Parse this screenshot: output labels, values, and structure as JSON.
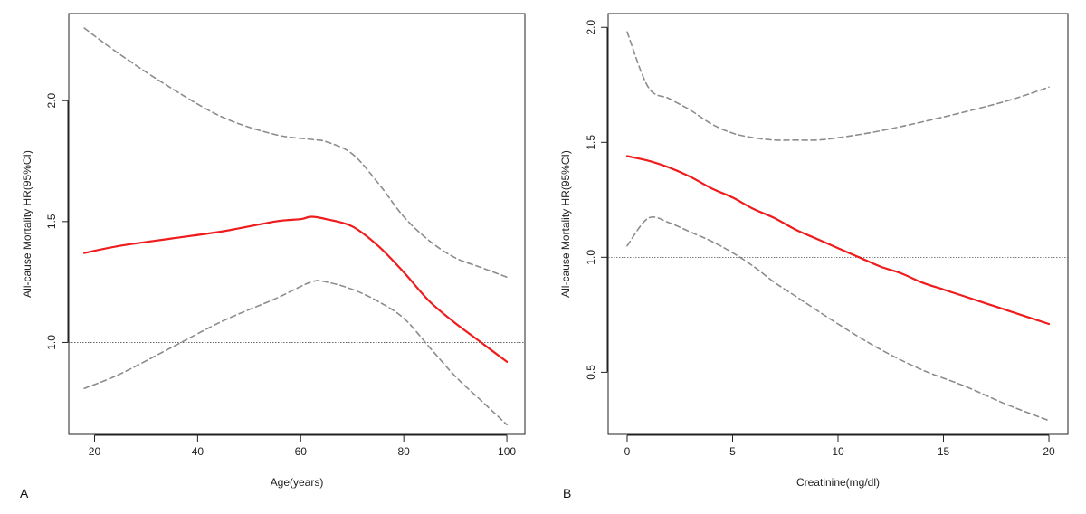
{
  "chart_data": [
    {
      "type": "line",
      "panel_label": "A",
      "xlabel": "Age(years)",
      "ylabel": "All-cause Mortality HR(95%CI)",
      "xlim": [
        15,
        103.5
      ],
      "ylim": [
        0.62,
        2.36
      ],
      "xticks": [
        20,
        40,
        60,
        80,
        100
      ],
      "xtick_labels": [
        "20",
        "40",
        "60",
        "80",
        "100"
      ],
      "yticks": [
        1.0,
        1.5,
        2.0
      ],
      "ytick_labels": [
        "1.0",
        "1.5",
        "2.0"
      ],
      "reference_line": 1.0,
      "colors": {
        "estimate": "#ee1c1c",
        "ci": "#8c8c8c",
        "reference": "#555555"
      },
      "series": [
        {
          "name": "HR",
          "style": "solid",
          "x": [
            18,
            25,
            35,
            45,
            55,
            60,
            62,
            65,
            70,
            75,
            80,
            85,
            90,
            95,
            100
          ],
          "y": [
            1.37,
            1.4,
            1.43,
            1.46,
            1.5,
            1.51,
            1.52,
            1.51,
            1.48,
            1.4,
            1.29,
            1.17,
            1.08,
            1.0,
            0.92
          ]
        },
        {
          "name": "Upper 95% CI",
          "style": "dashed",
          "x": [
            18,
            25,
            35,
            45,
            55,
            62,
            65,
            70,
            75,
            80,
            85,
            90,
            95,
            100
          ],
          "y": [
            2.3,
            2.19,
            2.05,
            1.93,
            1.86,
            1.84,
            1.83,
            1.78,
            1.66,
            1.52,
            1.42,
            1.35,
            1.31,
            1.27
          ]
        },
        {
          "name": "Lower 95% CI",
          "style": "dashed",
          "x": [
            18,
            25,
            35,
            45,
            55,
            62,
            65,
            70,
            75,
            80,
            85,
            90,
            95,
            100
          ],
          "y": [
            0.81,
            0.87,
            0.98,
            1.09,
            1.18,
            1.25,
            1.25,
            1.22,
            1.17,
            1.1,
            0.98,
            0.86,
            0.76,
            0.66
          ]
        }
      ]
    },
    {
      "type": "line",
      "panel_label": "B",
      "xlabel": "Creatinine(mg/dl)",
      "ylabel": "All-cause Mortality HR(95%CI)",
      "xlim": [
        -0.9,
        20.9
      ],
      "ylim": [
        0.23,
        2.06
      ],
      "xticks": [
        0,
        5,
        10,
        15,
        20
      ],
      "xtick_labels": [
        "0",
        "5",
        "10",
        "15",
        "20"
      ],
      "yticks": [
        0.5,
        1.0,
        1.5,
        2.0
      ],
      "ytick_labels": [
        "0.5",
        "1.0",
        "1.5",
        "2.0"
      ],
      "reference_line": 1.0,
      "colors": {
        "estimate": "#ee1c1c",
        "ci": "#8c8c8c",
        "reference": "#555555"
      },
      "series": [
        {
          "name": "HR",
          "style": "solid",
          "x": [
            0,
            1,
            2,
            3,
            4,
            5,
            6,
            7,
            8,
            9,
            10,
            11,
            12,
            13,
            14,
            15,
            16,
            17,
            18,
            19,
            20
          ],
          "y": [
            1.44,
            1.42,
            1.39,
            1.35,
            1.3,
            1.26,
            1.21,
            1.17,
            1.12,
            1.08,
            1.04,
            1.0,
            0.96,
            0.93,
            0.89,
            0.86,
            0.83,
            0.8,
            0.77,
            0.74,
            0.71
          ]
        },
        {
          "name": "Upper 95% CI",
          "style": "dashed",
          "x": [
            0,
            1,
            2,
            3,
            4,
            5,
            6,
            7,
            8,
            9,
            10,
            12,
            15,
            18,
            20
          ],
          "y": [
            1.98,
            1.74,
            1.69,
            1.64,
            1.58,
            1.54,
            1.52,
            1.51,
            1.51,
            1.51,
            1.52,
            1.55,
            1.61,
            1.68,
            1.74
          ]
        },
        {
          "name": "Lower 95% CI",
          "style": "dashed",
          "x": [
            0,
            1,
            2,
            3,
            4,
            5,
            6,
            7,
            8,
            10,
            12,
            14,
            16,
            18,
            20
          ],
          "y": [
            1.05,
            1.17,
            1.15,
            1.11,
            1.07,
            1.02,
            0.96,
            0.89,
            0.83,
            0.71,
            0.6,
            0.51,
            0.44,
            0.36,
            0.29
          ]
        }
      ]
    }
  ]
}
